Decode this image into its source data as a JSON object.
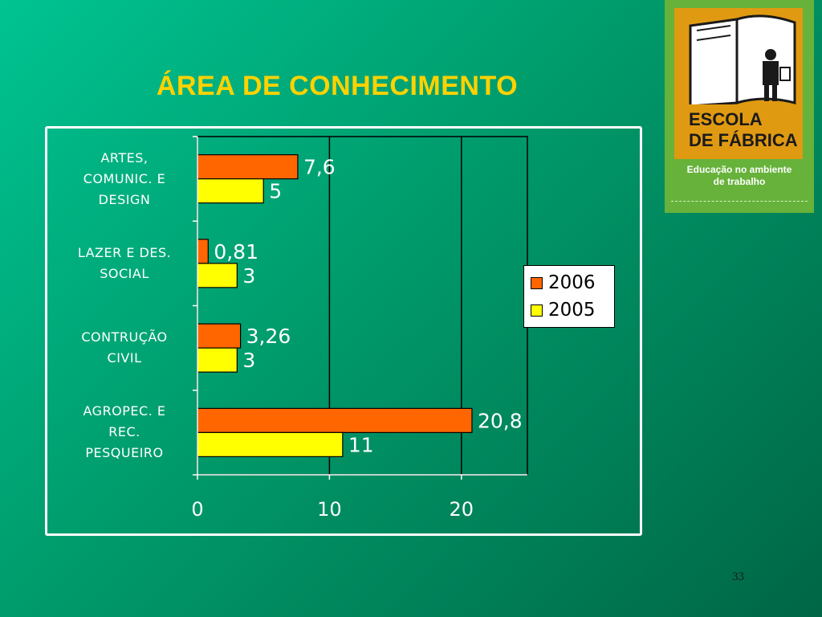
{
  "slide": {
    "title": "ÁREA DE CONHECIMENTO",
    "page_number": "33"
  },
  "logo": {
    "name": "ESCOLA\nDE FÁBRICA",
    "tagline_line1": "Educação no ambiente",
    "tagline_line2": "de trabalho"
  },
  "chart_data": {
    "type": "bar",
    "orientation": "horizontal",
    "categories": [
      "ARTES,\nCOMUNIC. E\nDESIGN",
      "LAZER E DES.\nSOCIAL",
      "CONTRUÇÃO\nCIVIL",
      "AGROPEC. E\nREC.\nPESQUEIRO"
    ],
    "series": [
      {
        "name": "2006",
        "values": [
          7.6,
          0.81,
          3.26,
          20.8
        ],
        "labels": [
          "7,6",
          "0,81",
          "3,26",
          "20,8"
        ],
        "color": "#ff6600"
      },
      {
        "name": "2005",
        "values": [
          5,
          3,
          3,
          11
        ],
        "labels": [
          "5",
          "3",
          "3",
          "11"
        ],
        "color": "#ffff00"
      }
    ],
    "xlim": [
      0,
      25
    ],
    "xticks": [
      "0",
      "10",
      "20"
    ],
    "grid": true,
    "legend": "right"
  }
}
